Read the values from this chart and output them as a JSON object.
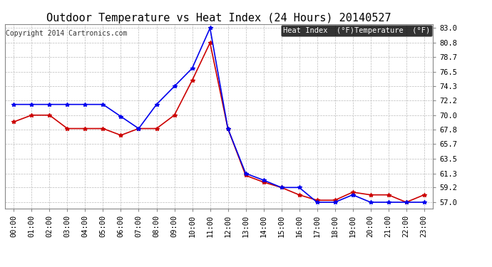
{
  "title": "Outdoor Temperature vs Heat Index (24 Hours) 20140527",
  "copyright": "Copyright 2014 Cartronics.com",
  "background_color": "#ffffff",
  "plot_bg_color": "#ffffff",
  "grid_color": "#bbbbbb",
  "x_labels": [
    "00:00",
    "01:00",
    "02:00",
    "03:00",
    "04:00",
    "05:00",
    "06:00",
    "07:00",
    "08:00",
    "09:00",
    "10:00",
    "11:00",
    "12:00",
    "13:00",
    "14:00",
    "15:00",
    "16:00",
    "17:00",
    "18:00",
    "19:00",
    "20:00",
    "21:00",
    "22:00",
    "23:00"
  ],
  "y_ticks": [
    57.0,
    59.2,
    61.3,
    63.5,
    65.7,
    67.8,
    70.0,
    72.2,
    74.3,
    76.5,
    78.7,
    80.8,
    83.0
  ],
  "ylim": [
    56.1,
    83.6
  ],
  "heat_index": [
    71.6,
    71.6,
    71.6,
    71.6,
    71.6,
    71.6,
    69.8,
    68.0,
    71.6,
    74.3,
    77.0,
    83.0,
    68.0,
    61.3,
    60.3,
    59.2,
    59.2,
    57.0,
    57.0,
    58.1,
    57.0,
    57.0,
    57.0,
    57.0
  ],
  "temperature": [
    69.0,
    70.0,
    70.0,
    68.0,
    68.0,
    68.0,
    67.0,
    68.0,
    68.0,
    70.0,
    75.2,
    80.8,
    68.0,
    61.0,
    60.0,
    59.2,
    58.1,
    57.3,
    57.3,
    58.5,
    58.1,
    58.1,
    57.0,
    58.1
  ],
  "heat_index_color": "#0000ee",
  "temperature_color": "#cc0000",
  "marker": "*",
  "marker_size": 4,
  "line_width": 1.2,
  "title_fontsize": 11,
  "tick_fontsize": 7.5,
  "copyright_fontsize": 7,
  "legend_heat_label": "Heat Index  (°F)",
  "legend_temp_label": "Temperature  (°F)"
}
